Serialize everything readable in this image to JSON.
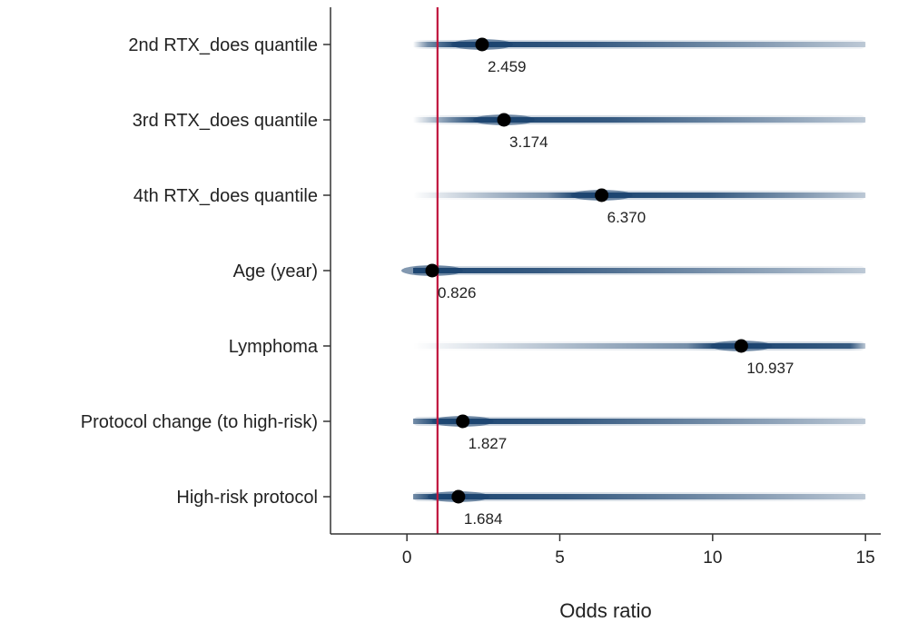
{
  "chart_data": {
    "type": "forest",
    "xlabel": "Odds ratio",
    "xlim": [
      -2.5,
      15.5
    ],
    "xticks": [
      0,
      5,
      10,
      15
    ],
    "reference_line": 1,
    "rows": [
      {
        "label": "2nd RTX_does quantile",
        "value": 2.459,
        "value_label": "2.459"
      },
      {
        "label": "3rd RTX_does quantile",
        "value": 3.174,
        "value_label": "3.174"
      },
      {
        "label": "4th RTX_does quantile",
        "value": 6.37,
        "value_label": "6.370"
      },
      {
        "label": "Age (year)",
        "value": 0.826,
        "value_label": "0.826"
      },
      {
        "label": "Lymphoma",
        "value": 10.937,
        "value_label": "10.937"
      },
      {
        "label": "Protocol change (to high-risk)",
        "value": 1.827,
        "value_label": "1.827"
      },
      {
        "label": "High-risk protocol",
        "value": 1.684,
        "value_label": "1.684"
      }
    ],
    "colors": {
      "band": "#1b4470",
      "reference_line": "#c0143c",
      "point": "#000000",
      "axis": "#333333"
    }
  }
}
